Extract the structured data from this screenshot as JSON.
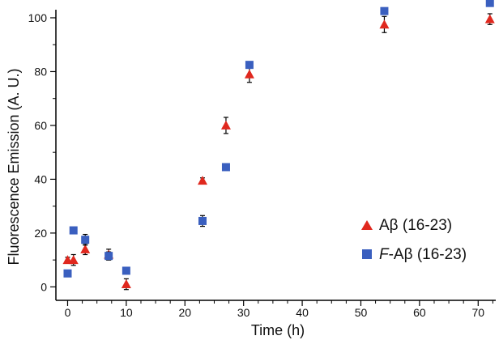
{
  "chart_data": {
    "type": "scatter",
    "xlabel": "Time (h)",
    "ylabel": "Fluorescence Emission (A. U.)",
    "xlim": [
      -2,
      73
    ],
    "ylim": [
      -5,
      103
    ],
    "xticks": [
      0,
      10,
      20,
      30,
      40,
      50,
      60,
      70
    ],
    "yticks": [
      0,
      20,
      40,
      60,
      80,
      100
    ],
    "x_minor_step": 2.5,
    "y_minor_step": 10,
    "grid": false,
    "legend_position": "lower-right",
    "series": [
      {
        "name_prefix": "",
        "name_italic": "",
        "name": "Aβ (16-23)",
        "marker": "triangle",
        "color": "#e0281e",
        "points": [
          {
            "x": 0,
            "y": 10,
            "err": 1
          },
          {
            "x": 1,
            "y": 10,
            "err": 2
          },
          {
            "x": 3,
            "y": 14,
            "err": 2
          },
          {
            "x": 7,
            "y": 12,
            "err": 2
          },
          {
            "x": 10,
            "y": 1,
            "err": 2
          },
          {
            "x": 23,
            "y": 39.5,
            "err": 1
          },
          {
            "x": 27,
            "y": 60,
            "err": 3
          },
          {
            "x": 31,
            "y": 79,
            "err": 3
          },
          {
            "x": 54,
            "y": 97.5,
            "err": 3
          },
          {
            "x": 72,
            "y": 99.5,
            "err": 2
          }
        ]
      },
      {
        "name_italic": "F",
        "name_rest": "-Aβ (16-23)",
        "marker": "square",
        "color": "#3a5fbf",
        "points": [
          {
            "x": 0,
            "y": 5,
            "err": 1
          },
          {
            "x": 1,
            "y": 21,
            "err": 0
          },
          {
            "x": 3,
            "y": 17.5,
            "err": 2
          },
          {
            "x": 7,
            "y": 11.5,
            "err": 1.5
          },
          {
            "x": 10,
            "y": 6,
            "err": 0
          },
          {
            "x": 23,
            "y": 24.5,
            "err": 2
          },
          {
            "x": 27,
            "y": 44.5,
            "err": 0
          },
          {
            "x": 31,
            "y": 82.5,
            "err": 0
          },
          {
            "x": 54,
            "y": 102.5,
            "err": 1
          },
          {
            "x": 72,
            "y": 105.5,
            "err": 0
          }
        ]
      }
    ]
  }
}
